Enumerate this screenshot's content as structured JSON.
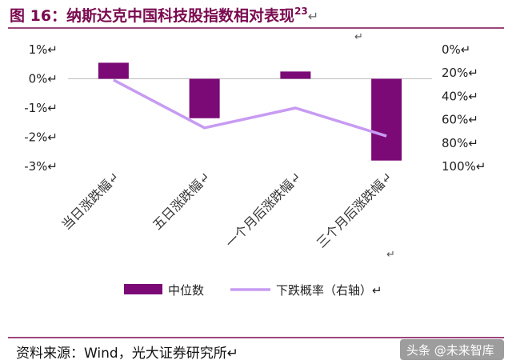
{
  "header": {
    "title": "图 16：纳斯达克中国科技股指数相对表现",
    "title_superscript": "23",
    "return_mark": "↵"
  },
  "chart_data": {
    "type": "bar+line",
    "categories": [
      "当日涨跌幅",
      "五日涨跌幅",
      "一个月后涨跌幅",
      "三个月后涨跌幅"
    ],
    "series": [
      {
        "name": "中位数",
        "type": "bar",
        "axis": "left",
        "color": "#7b0a76",
        "values": [
          0.55,
          -1.35,
          0.25,
          -2.8
        ]
      },
      {
        "name": "下跌概率（右轴）",
        "type": "line",
        "axis": "right",
        "color": "#c79bf2",
        "values": [
          26,
          67,
          50,
          74
        ]
      }
    ],
    "y_left": {
      "min": -3,
      "max": 1,
      "ticks": [
        1,
        0,
        -1,
        -2,
        -3
      ],
      "tick_labels": [
        "1%↵",
        "0%↵",
        "-1%↵",
        "-2%↵",
        "-3%↵"
      ]
    },
    "y_right": {
      "min": 0,
      "max": 100,
      "inverted": true,
      "ticks": [
        0,
        20,
        40,
        60,
        80,
        100
      ],
      "tick_labels": [
        "0%↵",
        "20%↵",
        "40%↵",
        "60%↵",
        "80%↵",
        "100%↵"
      ]
    },
    "category_label_suffix": "↵",
    "legend_position": "bottom",
    "grid": false
  },
  "legend": [
    {
      "label": "中位数",
      "color": "#7b0a76",
      "kind": "bar"
    },
    {
      "label": "下跌概率（右轴）↵",
      "color": "#c79bf2",
      "kind": "line"
    }
  ],
  "footer": {
    "source": "资料来源：Wind，光大证券研究所↵"
  },
  "watermark": {
    "text": "头条 @未来智库"
  }
}
